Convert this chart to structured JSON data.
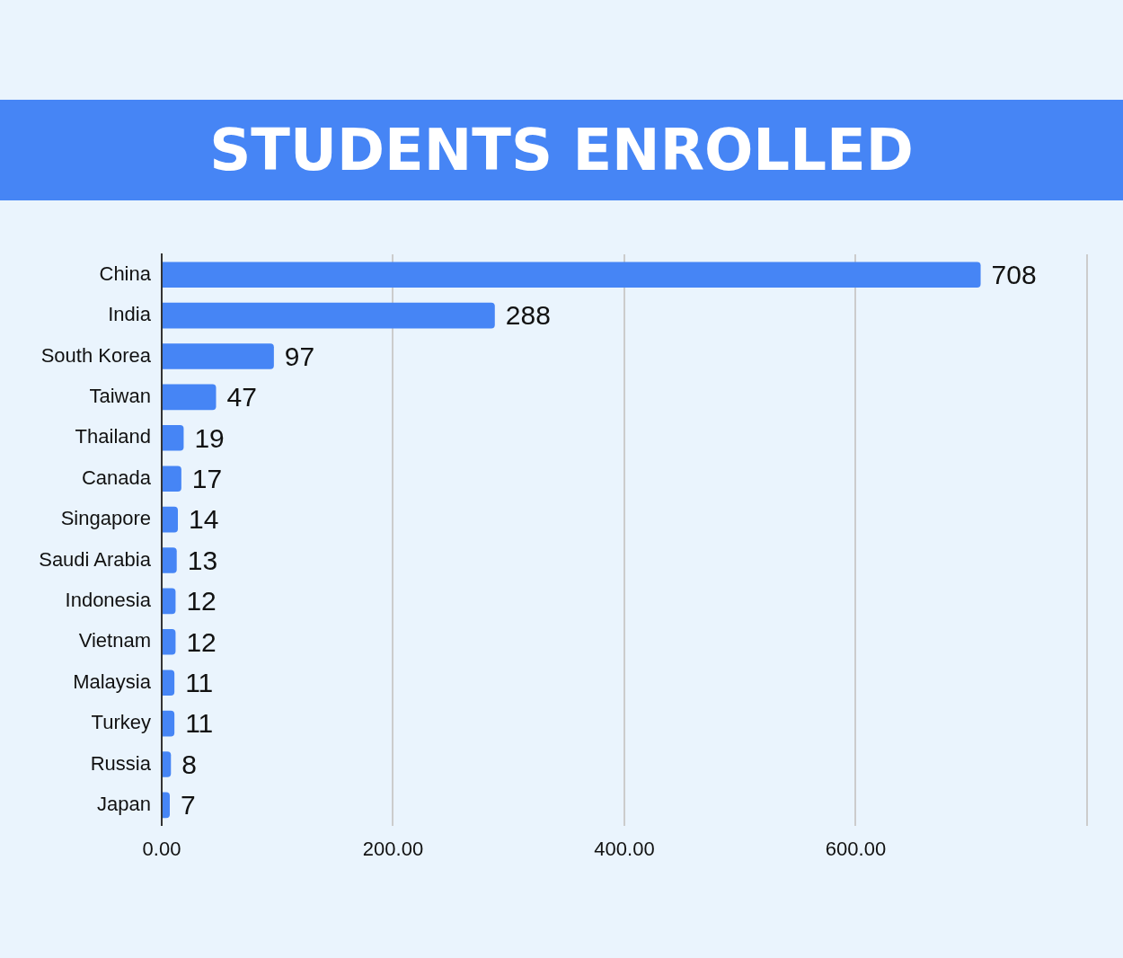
{
  "chart_data": {
    "type": "bar",
    "orientation": "horizontal",
    "title": "STUDENTS ENROLLED",
    "categories": [
      "China",
      "India",
      "South Korea",
      "Taiwan",
      "Thailand",
      "Canada",
      "Singapore",
      "Saudi Arabia",
      "Indonesia",
      "Vietnam",
      "Malaysia",
      "Turkey",
      "Russia",
      "Japan"
    ],
    "values": [
      708,
      288,
      97,
      47,
      19,
      17,
      14,
      13,
      12,
      12,
      11,
      11,
      8,
      7
    ],
    "color": "#4685f5",
    "xlim": [
      0,
      800
    ],
    "xticks": [
      {
        "value": 0,
        "label": "0.00"
      },
      {
        "value": 200,
        "label": "200.00"
      },
      {
        "value": 400,
        "label": "400.00"
      },
      {
        "value": 600,
        "label": "600.00"
      },
      {
        "value": 800,
        "label": null
      }
    ],
    "grid": "x",
    "data_labels": true
  }
}
